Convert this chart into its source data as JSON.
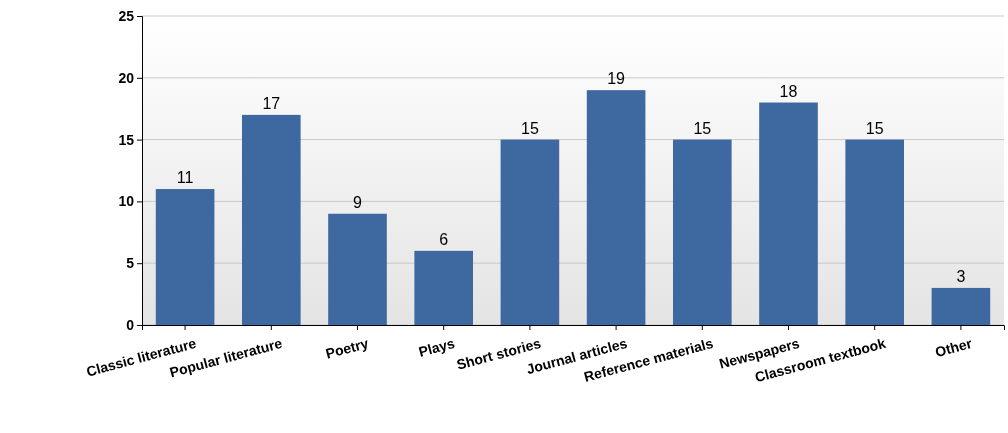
{
  "chart_data": {
    "type": "bar",
    "categories": [
      "Classic literature",
      "Popular literature",
      "Poetry",
      "Plays",
      "Short stories",
      "Journal articles",
      "Reference materials",
      "Newspapers",
      "Classroom textbook",
      "Other"
    ],
    "values": [
      11,
      17,
      9,
      6,
      15,
      19,
      15,
      18,
      15,
      3
    ],
    "color": "#3d68a0",
    "ylim": [
      0,
      25
    ],
    "yticks": [
      0,
      5,
      10,
      15,
      20,
      25
    ],
    "grid": "y",
    "data_labels": true
  }
}
